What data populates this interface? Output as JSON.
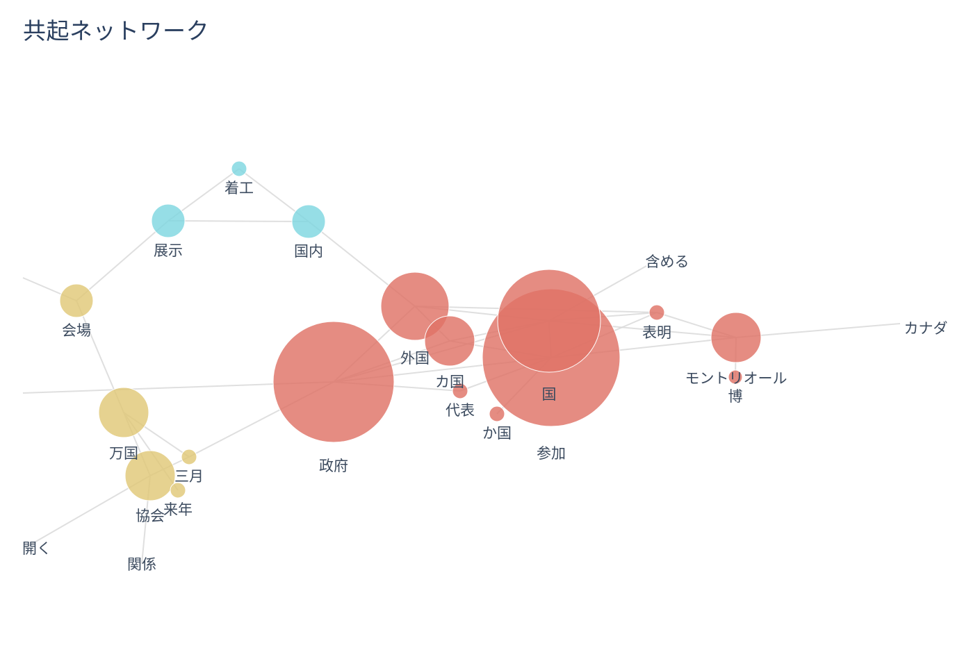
{
  "title": "共起ネットワーク",
  "colors": {
    "red": "#df7367",
    "yellow": "#e0c878",
    "cyan": "#7fd7e0",
    "edge": "#d9d9d9",
    "label": "#3b4a5e"
  },
  "network": {
    "nodes": [
      {
        "id": "chakko",
        "label": "着工",
        "group": "cyan"
      },
      {
        "id": "tenji",
        "label": "展示",
        "group": "cyan"
      },
      {
        "id": "kokunai",
        "label": "国内",
        "group": "cyan"
      },
      {
        "id": "kaijo",
        "label": "会場",
        "group": "yellow"
      },
      {
        "id": "bankoku",
        "label": "万国",
        "group": "yellow"
      },
      {
        "id": "sangatsu",
        "label": "三月",
        "group": "yellow"
      },
      {
        "id": "kyokai",
        "label": "協会",
        "group": "yellow"
      },
      {
        "id": "rainen",
        "label": "来年",
        "group": "yellow"
      },
      {
        "id": "hiraku",
        "label": "開く",
        "group": "none"
      },
      {
        "id": "kankei",
        "label": "関係",
        "group": "none"
      },
      {
        "id": "seifu",
        "label": "政府",
        "group": "red"
      },
      {
        "id": "gaikoku",
        "label": "外国",
        "group": "red"
      },
      {
        "id": "kakoku1",
        "label": "カ国",
        "group": "red"
      },
      {
        "id": "daihyo",
        "label": "代表",
        "group": "red"
      },
      {
        "id": "kakoku2",
        "label": "か国",
        "group": "red"
      },
      {
        "id": "kuni",
        "label": "国",
        "group": "red"
      },
      {
        "id": "sanka",
        "label": "参加",
        "group": "red"
      },
      {
        "id": "fukumeru",
        "label": "含める",
        "group": "none"
      },
      {
        "id": "hyomei",
        "label": "表明",
        "group": "red"
      },
      {
        "id": "montreal",
        "label": "モントリオール",
        "group": "red"
      },
      {
        "id": "haku",
        "label": "博",
        "group": "red"
      },
      {
        "id": "canada",
        "label": "カナダ",
        "group": "none"
      }
    ],
    "edges": [
      [
        "chakko",
        "tenji"
      ],
      [
        "chakko",
        "kokunai"
      ],
      [
        "tenji",
        "kokunai"
      ],
      [
        "kokunai",
        "gaikoku"
      ],
      [
        "tenji",
        "kaijo"
      ],
      [
        "kaijo",
        "bankoku"
      ],
      [
        "kaijo",
        "left_edge_top"
      ],
      [
        "bankoku",
        "sangatsu"
      ],
      [
        "bankoku",
        "kyokai"
      ],
      [
        "bankoku",
        "rainen"
      ],
      [
        "kyokai",
        "hiraku"
      ],
      [
        "kyokai",
        "kankei"
      ],
      [
        "kyokai",
        "sangatsu"
      ],
      [
        "sangatsu",
        "seifu"
      ],
      [
        "seifu",
        "left_edge_mid"
      ],
      [
        "seifu",
        "gaikoku"
      ],
      [
        "seifu",
        "kakoku1"
      ],
      [
        "seifu",
        "daihyo"
      ],
      [
        "seifu",
        "sanka"
      ],
      [
        "seifu",
        "kuni"
      ],
      [
        "gaikoku",
        "kuni"
      ],
      [
        "gaikoku",
        "kakoku1"
      ],
      [
        "gaikoku",
        "hyomei"
      ],
      [
        "kakoku1",
        "kuni"
      ],
      [
        "kakoku1",
        "sanka"
      ],
      [
        "daihyo",
        "sanka"
      ],
      [
        "kakoku2",
        "sanka"
      ],
      [
        "kuni",
        "sanka"
      ],
      [
        "kuni",
        "fukumeru"
      ],
      [
        "kuni",
        "hyomei"
      ],
      [
        "sanka",
        "hyomei"
      ],
      [
        "sanka",
        "montreal"
      ],
      [
        "kuni",
        "montreal"
      ],
      [
        "montreal",
        "haku"
      ],
      [
        "montreal",
        "canada"
      ],
      [
        "hyomei",
        "montreal"
      ]
    ]
  }
}
